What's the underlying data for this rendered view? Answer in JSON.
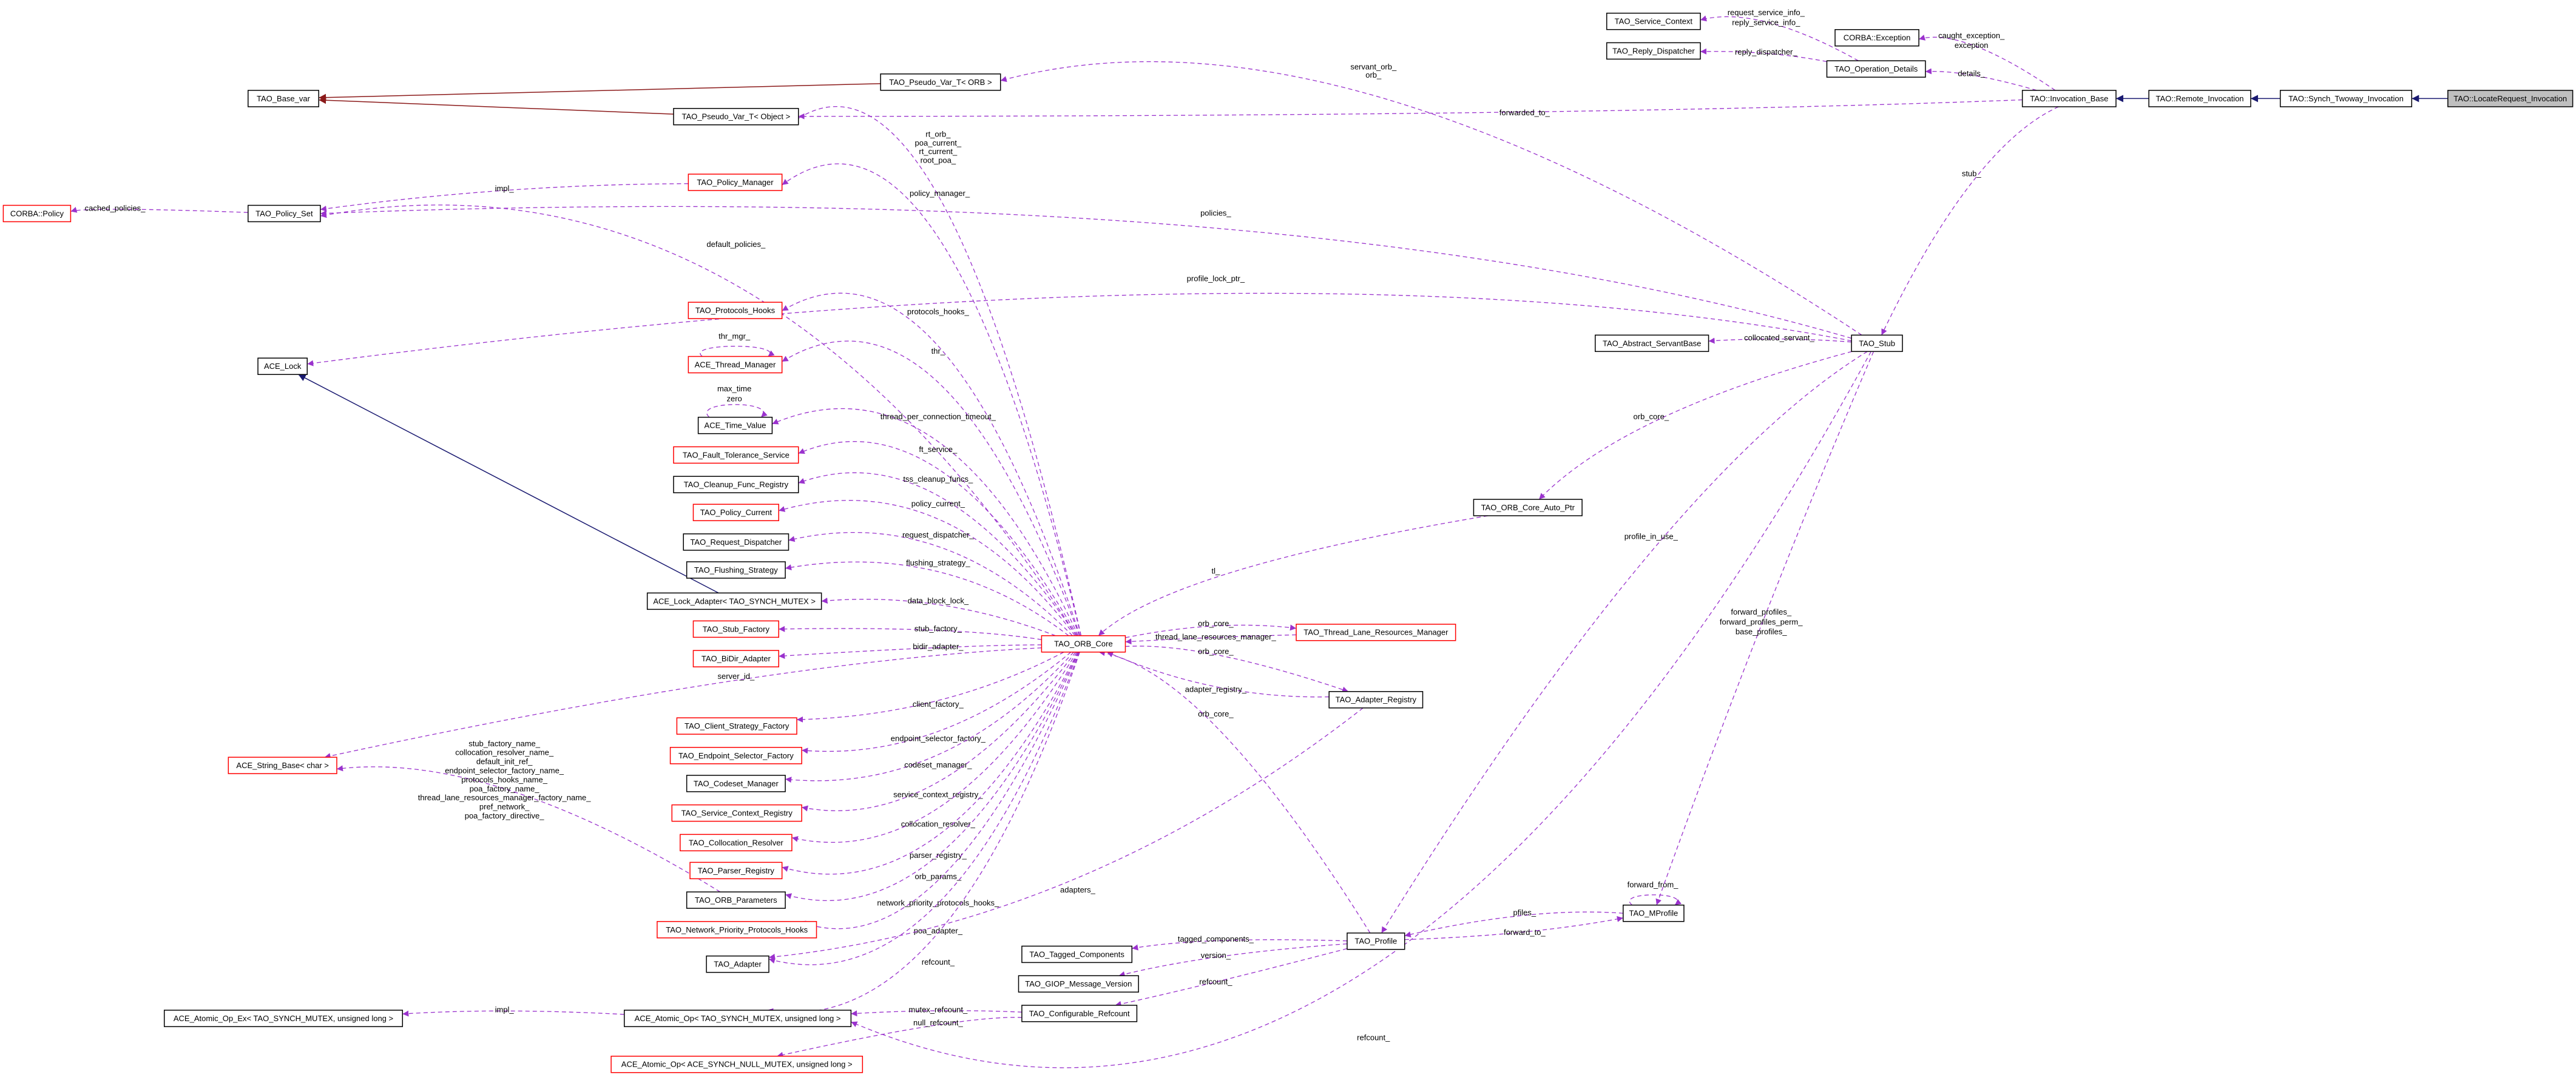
{
  "nodes": [
    {
      "label": "TAO::LocateRequest_Invocation"
    },
    {
      "label": "TAO::Synch_Twoway_Invocation"
    },
    {
      "label": "TAO::Remote_Invocation"
    },
    {
      "label": "TAO::Invocation_Base"
    },
    {
      "label": "TAO_Operation_Details"
    },
    {
      "label": "CORBA::Exception"
    },
    {
      "label": "TAO_Service_Context"
    },
    {
      "label": "TAO_Reply_Dispatcher"
    },
    {
      "label": "TAO_Pseudo_Var_T< ORB >"
    },
    {
      "label": "TAO_Base_var"
    },
    {
      "label": "TAO_Pseudo_Var_T< Object >"
    },
    {
      "label": "TAO_Policy_Manager"
    },
    {
      "label": "CORBA::Policy"
    },
    {
      "label": "TAO_Policy_Set"
    },
    {
      "label": "ACE_Lock"
    },
    {
      "label": "TAO_Protocols_Hooks"
    },
    {
      "label": "ACE_Thread_Manager"
    },
    {
      "label": "ACE_Time_Value"
    },
    {
      "label": "TAO_Fault_Tolerance_Service"
    },
    {
      "label": "TAO_Cleanup_Func_Registry"
    },
    {
      "label": "TAO_Policy_Current"
    },
    {
      "label": "TAO_Request_Dispatcher"
    },
    {
      "label": "TAO_Flushing_Strategy"
    },
    {
      "label": "ACE_Lock_Adapter< TAO_SYNCH_MUTEX >"
    },
    {
      "label": "TAO_Stub_Factory"
    },
    {
      "label": "TAO_BiDir_Adapter"
    },
    {
      "label": "ACE_String_Base< char >"
    },
    {
      "label": "TAO_Client_Strategy_Factory"
    },
    {
      "label": "TAO_Endpoint_Selector_Factory"
    },
    {
      "label": "TAO_Codeset_Manager"
    },
    {
      "label": "TAO_Service_Context_Registry"
    },
    {
      "label": "TAO_Collocation_Resolver"
    },
    {
      "label": "TAO_Parser_Registry"
    },
    {
      "label": "TAO_ORB_Parameters"
    },
    {
      "label": "TAO_Network_Priority_Protocols_Hooks"
    },
    {
      "label": "TAO_Adapter"
    },
    {
      "label": "ACE_Atomic_Op_Ex< TAO_SYNCH_MUTEX, unsigned long >"
    },
    {
      "label": "ACE_Atomic_Op< TAO_SYNCH_MUTEX, unsigned long >"
    },
    {
      "label": "ACE_Atomic_Op< ACE_SYNCH_NULL_MUTEX, unsigned long >"
    },
    {
      "label": "TAO_ORB_Core"
    },
    {
      "label": "TAO_Thread_Lane_Resources_Manager"
    },
    {
      "label": "TAO_Adapter_Registry"
    },
    {
      "label": "TAO_Tagged_Components"
    },
    {
      "label": "TAO_GIOP_Message_Version"
    },
    {
      "label": "TAO_Configurable_Refcount"
    },
    {
      "label": "TAO_Profile"
    },
    {
      "label": "TAO_MProfile"
    },
    {
      "label": "TAO_ORB_Core_Auto_Ptr"
    },
    {
      "label": "TAO_Abstract_ServantBase"
    },
    {
      "label": "TAO_Stub"
    }
  ],
  "edges": [
    {
      "labels": [
        "details_"
      ]
    },
    {
      "labels": [
        "caught_exception_",
        "exception"
      ]
    },
    {
      "labels": [
        "request_service_info_",
        "reply_service_info_"
      ]
    },
    {
      "labels": [
        "reply_dispatcher_"
      ]
    },
    {
      "labels": [
        "servant_orb_",
        "orb_"
      ]
    },
    {
      "labels": [
        "forwarded_to_"
      ]
    },
    {
      "labels": [
        "rt_orb_",
        "poa_current_",
        "rt_current_",
        "root_poa_"
      ]
    },
    {
      "labels": [
        "policy_manager_"
      ]
    },
    {
      "labels": [
        "cached_policies_"
      ]
    },
    {
      "labels": [
        "impl_"
      ]
    },
    {
      "labels": [
        "policies_"
      ]
    },
    {
      "labels": [
        "default_policies_"
      ]
    },
    {
      "labels": [
        "profile_lock_ptr_"
      ]
    },
    {
      "labels": [
        "protocols_hooks_"
      ]
    },
    {
      "labels": [
        "thr_mgr_"
      ]
    },
    {
      "labels": [
        "thr_"
      ]
    },
    {
      "labels": [
        "max_time",
        "zero"
      ]
    },
    {
      "labels": [
        "thread_per_connection_timeout_"
      ]
    },
    {
      "labels": [
        "ft_service_"
      ]
    },
    {
      "labels": [
        "tss_cleanup_funcs_"
      ]
    },
    {
      "labels": [
        "policy_current_"
      ]
    },
    {
      "labels": [
        "request_dispatcher_"
      ]
    },
    {
      "labels": [
        "flushing_strategy_"
      ]
    },
    {
      "labels": [
        "data_block_lock_"
      ]
    },
    {
      "labels": [
        "stub_factory_"
      ]
    },
    {
      "labels": [
        "bidir_adapter_"
      ]
    },
    {
      "labels": [
        "server_id_"
      ]
    },
    {
      "labels": [
        "stub_factory_name_",
        "collocation_resolver_name_",
        "default_init_ref_",
        "endpoint_selector_factory_name_",
        "protocols_hooks_name_",
        "poa_factory_name_",
        "thread_lane_resources_manager_factory_name_",
        "pref_network_",
        "poa_factory_directive_"
      ]
    },
    {
      "labels": [
        "client_factory_"
      ]
    },
    {
      "labels": [
        "endpoint_selector_factory_"
      ]
    },
    {
      "labels": [
        "codeset_manager_"
      ]
    },
    {
      "labels": [
        "service_context_registry_"
      ]
    },
    {
      "labels": [
        "collocation_resolver_"
      ]
    },
    {
      "labels": [
        "parser_registry_"
      ]
    },
    {
      "labels": [
        "orb_params_"
      ]
    },
    {
      "labels": [
        "network_priority_protocols_hooks_"
      ]
    },
    {
      "labels": [
        "poa_adapter_"
      ]
    },
    {
      "labels": [
        "adapters_"
      ]
    },
    {
      "labels": [
        "refcount_"
      ]
    },
    {
      "labels": [
        "impl_"
      ]
    },
    {
      "labels": [
        "mutex_refcount_"
      ]
    },
    {
      "labels": [
        "null_refcount_"
      ]
    },
    {
      "labels": [
        "refcount_"
      ]
    },
    {
      "labels": [
        "orb_core_"
      ]
    },
    {
      "labels": [
        "thread_lane_resources_manager_"
      ]
    },
    {
      "labels": [
        "adapter_registry_"
      ]
    },
    {
      "labels": [
        "orb_core_"
      ]
    },
    {
      "labels": [
        "orb_core_"
      ]
    },
    {
      "labels": [
        "tl_"
      ]
    },
    {
      "labels": [
        "tagged_components_"
      ]
    },
    {
      "labels": [
        "version_"
      ]
    },
    {
      "labels": [
        "refcount_"
      ]
    },
    {
      "labels": [
        "pfiles_"
      ]
    },
    {
      "labels": [
        "forward_to_"
      ]
    },
    {
      "labels": [
        "forward_from_"
      ]
    },
    {
      "labels": [
        "forward_profiles_",
        "forward_profiles_perm_",
        "base_profiles_"
      ]
    },
    {
      "labels": [
        "profile_in_use_"
      ]
    },
    {
      "labels": [
        "orb_core_"
      ]
    },
    {
      "labels": [
        "collocated_servant_"
      ]
    },
    {
      "labels": [
        "stub_"
      ]
    }
  ]
}
